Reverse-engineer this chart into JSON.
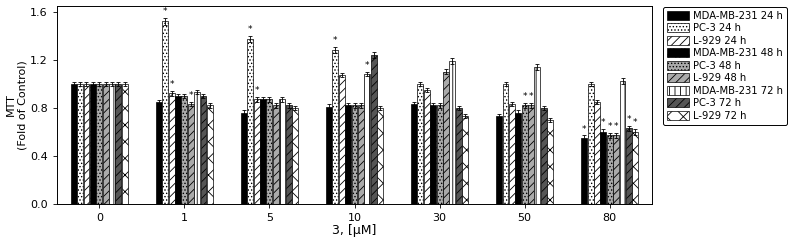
{
  "categories": [
    0,
    1,
    5,
    10,
    30,
    50,
    80
  ],
  "series_order": [
    "MDA-MB-231 24h",
    "PC-3 24h",
    "L-929 24h",
    "MDA-MB-231 48h",
    "PC-3 48h",
    "L-929 48h",
    "MDA-MB-231 72h",
    "PC-3 72h",
    "L-929 72h"
  ],
  "values": {
    "MDA-MB-231 24h": [
      1.0,
      0.85,
      0.76,
      0.81,
      0.83,
      0.73,
      0.55
    ],
    "PC-3 24h": [
      1.0,
      1.52,
      1.37,
      1.28,
      1.0,
      1.0,
      1.0
    ],
    "L-929 24h": [
      1.0,
      0.92,
      0.87,
      1.07,
      0.95,
      0.83,
      0.85
    ],
    "MDA-MB-231 48h": [
      1.0,
      0.9,
      0.87,
      0.82,
      0.82,
      0.76,
      0.6
    ],
    "PC-3 48h": [
      1.0,
      0.9,
      0.87,
      0.82,
      0.82,
      0.82,
      0.57
    ],
    "L-929 48h": [
      1.0,
      0.83,
      0.82,
      0.82,
      1.1,
      0.82,
      0.57
    ],
    "MDA-MB-231 72h": [
      1.0,
      0.93,
      0.87,
      1.08,
      1.19,
      1.14,
      1.02
    ],
    "PC-3 72h": [
      1.0,
      0.9,
      0.82,
      1.24,
      0.8,
      0.8,
      0.63
    ],
    "L-929 72h": [
      1.0,
      0.82,
      0.8,
      0.8,
      0.73,
      0.7,
      0.6
    ]
  },
  "errors": {
    "MDA-MB-231 24h": [
      0.015,
      0.018,
      0.018,
      0.018,
      0.018,
      0.018,
      0.02
    ],
    "PC-3 24h": [
      0.015,
      0.03,
      0.025,
      0.025,
      0.018,
      0.018,
      0.018
    ],
    "L-929 24h": [
      0.015,
      0.018,
      0.018,
      0.018,
      0.018,
      0.018,
      0.018
    ],
    "MDA-MB-231 48h": [
      0.015,
      0.018,
      0.018,
      0.018,
      0.018,
      0.018,
      0.022
    ],
    "PC-3 48h": [
      0.015,
      0.018,
      0.018,
      0.022,
      0.018,
      0.018,
      0.022
    ],
    "L-929 48h": [
      0.015,
      0.018,
      0.018,
      0.018,
      0.022,
      0.018,
      0.022
    ],
    "MDA-MB-231 72h": [
      0.015,
      0.018,
      0.018,
      0.018,
      0.025,
      0.025,
      0.025
    ],
    "PC-3 72h": [
      0.015,
      0.018,
      0.018,
      0.025,
      0.018,
      0.018,
      0.022
    ],
    "L-929 72h": [
      0.015,
      0.018,
      0.018,
      0.018,
      0.018,
      0.018,
      0.022
    ]
  },
  "hatch_map": {
    "MDA-MB-231 24h": {
      "hatch": "",
      "fc": "black",
      "ec": "black"
    },
    "PC-3 24h": {
      "hatch": ".....",
      "fc": "white",
      "ec": "black"
    },
    "L-929 24h": {
      "hatch": "////",
      "fc": "white",
      "ec": "black"
    },
    "MDA-MB-231 48h": {
      "hatch": "xxx",
      "fc": "black",
      "ec": "black"
    },
    "PC-3 48h": {
      "hatch": ".....",
      "fc": "#aaaaaa",
      "ec": "black"
    },
    "L-929 48h": {
      "hatch": "////",
      "fc": "#aaaaaa",
      "ec": "black"
    },
    "MDA-MB-231 72h": {
      "hatch": "|||",
      "fc": "white",
      "ec": "black"
    },
    "PC-3 72h": {
      "hatch": "////",
      "fc": "#555555",
      "ec": "black"
    },
    "L-929 72h": {
      "hatch": "xx",
      "fc": "white",
      "ec": "black"
    }
  },
  "stars": {
    "PC-3 24h": [
      1,
      5,
      10
    ],
    "L-929 24h": [
      1,
      5
    ],
    "MDA-MB-231 48h": [
      80
    ],
    "L-929 48h": [
      1,
      50,
      80
    ],
    "MDA-MB-231 72h": [
      10
    ],
    "MDA-MB-231 24h": [
      80
    ],
    "PC-3 48h": [
      50,
      80
    ],
    "PC-3 72h": [
      80
    ],
    "L-929 72h": [
      80
    ]
  },
  "legend_labels": [
    "MDA-MB-231 24 h",
    "PC-3 24 h",
    "L-929 24 h",
    "MDA-MB-231 48 h",
    "PC-3 48 h",
    "L-929 48 h",
    "MDA-MB-231 72 h",
    "PC-3 72 h",
    "L-929 72 h"
  ],
  "ylabel": "MTT\n(Fold of Control)",
  "xlabel": "3, [μM]",
  "ylim": [
    0.0,
    1.65
  ],
  "yticks": [
    0.0,
    0.4,
    0.8,
    1.2,
    1.6
  ],
  "bar_width": 0.075
}
